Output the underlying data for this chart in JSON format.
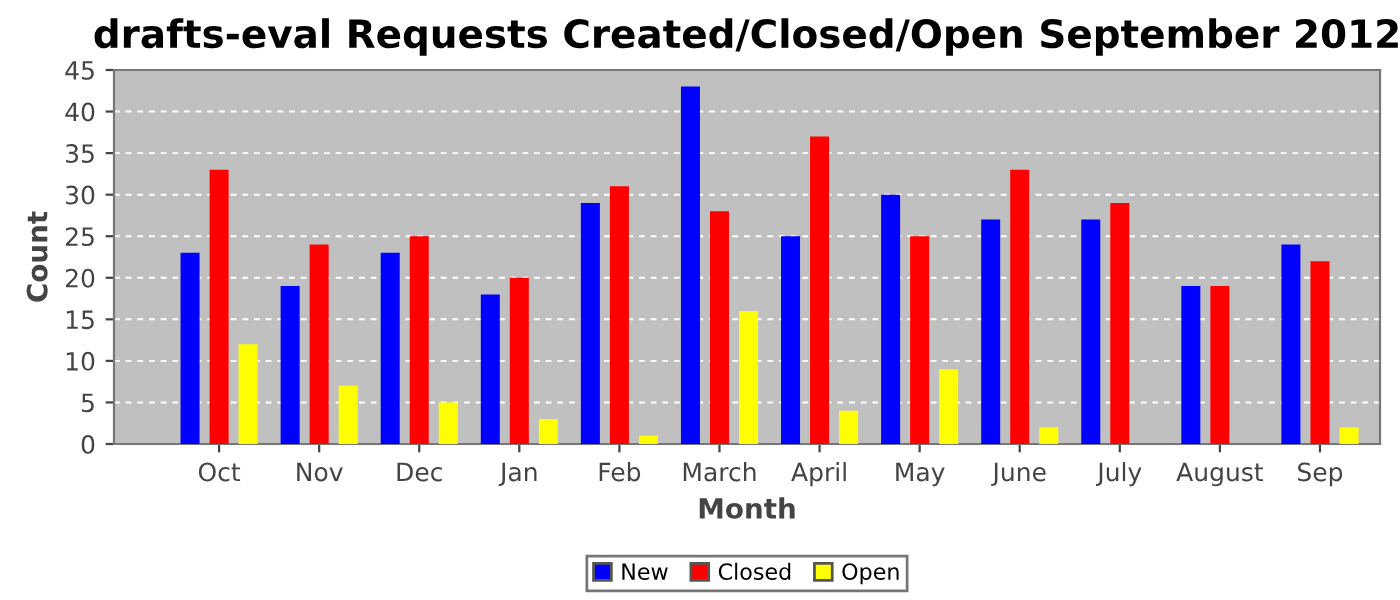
{
  "chart_data": {
    "type": "bar",
    "title": "drafts-eval Requests Created/Closed/Open September 2012",
    "xlabel": "Month",
    "ylabel": "Count",
    "categories": [
      "Oct",
      "Nov",
      "Dec",
      "Jan",
      "Feb",
      "March",
      "April",
      "May",
      "June",
      "July",
      "August",
      "Sep"
    ],
    "series": [
      {
        "name": "New",
        "color": "#0000ff",
        "values": [
          23,
          19,
          23,
          18,
          29,
          43,
          25,
          30,
          27,
          27,
          19,
          24
        ]
      },
      {
        "name": "Closed",
        "color": "#ff0000",
        "values": [
          33,
          24,
          25,
          20,
          31,
          28,
          37,
          25,
          33,
          29,
          19,
          22
        ]
      },
      {
        "name": "Open",
        "color": "#ffff00",
        "values": [
          12,
          7,
          5,
          3,
          1,
          16,
          4,
          9,
          2,
          0,
          0,
          2
        ]
      }
    ],
    "ylim": [
      0,
      45
    ],
    "yticks": [
      0,
      5,
      10,
      15,
      20,
      25,
      30,
      35,
      40,
      45
    ],
    "grid": "y",
    "legend": "bottom"
  }
}
